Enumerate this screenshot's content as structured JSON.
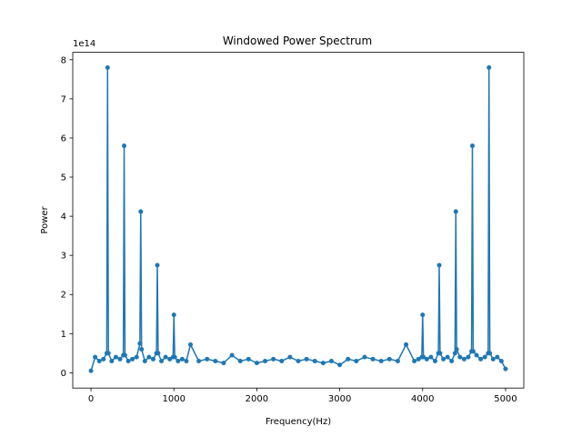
{
  "chart_data": {
    "type": "line",
    "title": "Windowed Power Spectrum",
    "xlabel": "Frequency(Hz)",
    "ylabel": "Power",
    "y_offset_text": "1e14",
    "y_scale": 100000000000000.0,
    "xlim": [
      -220,
      5220
    ],
    "ylim": [
      -0.39,
      8.19
    ],
    "x_ticks": [
      0,
      1000,
      2000,
      3000,
      4000,
      5000
    ],
    "x_tick_labels": [
      "0",
      "1000",
      "2000",
      "3000",
      "4000",
      "5000"
    ],
    "y_ticks": [
      0,
      1,
      2,
      3,
      4,
      5,
      6,
      7,
      8
    ],
    "y_tick_labels": [
      "0",
      "1",
      "2",
      "3",
      "4",
      "5",
      "6",
      "7",
      "8"
    ],
    "grid": false,
    "legend": "none",
    "color": "#1f77b4",
    "marker": "circle",
    "series": [
      {
        "x": [
          0,
          50,
          100,
          150,
          190,
          200,
          210,
          250,
          300,
          350,
          390,
          400,
          410,
          450,
          500,
          550,
          590,
          600,
          610,
          650,
          700,
          750,
          790,
          800,
          810,
          850,
          900,
          950,
          990,
          1000,
          1010,
          1050,
          1100,
          1150,
          1200,
          1300,
          1400,
          1500,
          1600,
          1700,
          1800,
          1900,
          2000,
          2100,
          2200,
          2300,
          2400,
          2500,
          2600,
          2700,
          2800,
          2900,
          3000,
          3100,
          3200,
          3300,
          3400,
          3500,
          3600,
          3700,
          3800,
          3900,
          3950,
          3990,
          4000,
          4010,
          4050,
          4100,
          4150,
          4190,
          4200,
          4210,
          4250,
          4300,
          4350,
          4390,
          4400,
          4410,
          4450,
          4500,
          4550,
          4590,
          4600,
          4610,
          4650,
          4700,
          4750,
          4790,
          4800,
          4810,
          4850,
          4900,
          4950,
          5000
        ],
        "y": [
          0.05,
          0.4,
          0.3,
          0.35,
          0.5,
          7.8,
          0.5,
          0.3,
          0.4,
          0.35,
          0.45,
          5.8,
          0.45,
          0.3,
          0.35,
          0.4,
          0.75,
          4.12,
          0.6,
          0.3,
          0.4,
          0.35,
          0.5,
          2.75,
          0.5,
          0.3,
          0.4,
          0.35,
          0.4,
          1.48,
          0.4,
          0.3,
          0.35,
          0.3,
          0.72,
          0.3,
          0.35,
          0.3,
          0.25,
          0.45,
          0.3,
          0.35,
          0.25,
          0.3,
          0.35,
          0.3,
          0.4,
          0.3,
          0.35,
          0.3,
          0.25,
          0.3,
          0.2,
          0.35,
          0.3,
          0.4,
          0.35,
          0.3,
          0.35,
          0.3,
          0.72,
          0.3,
          0.35,
          0.4,
          1.48,
          0.4,
          0.35,
          0.4,
          0.3,
          0.5,
          2.75,
          0.5,
          0.35,
          0.4,
          0.3,
          0.5,
          4.12,
          0.6,
          0.4,
          0.35,
          0.4,
          0.55,
          5.8,
          0.55,
          0.45,
          0.35,
          0.4,
          0.5,
          7.8,
          0.5,
          0.35,
          0.4,
          0.3,
          0.1
        ]
      }
    ]
  }
}
